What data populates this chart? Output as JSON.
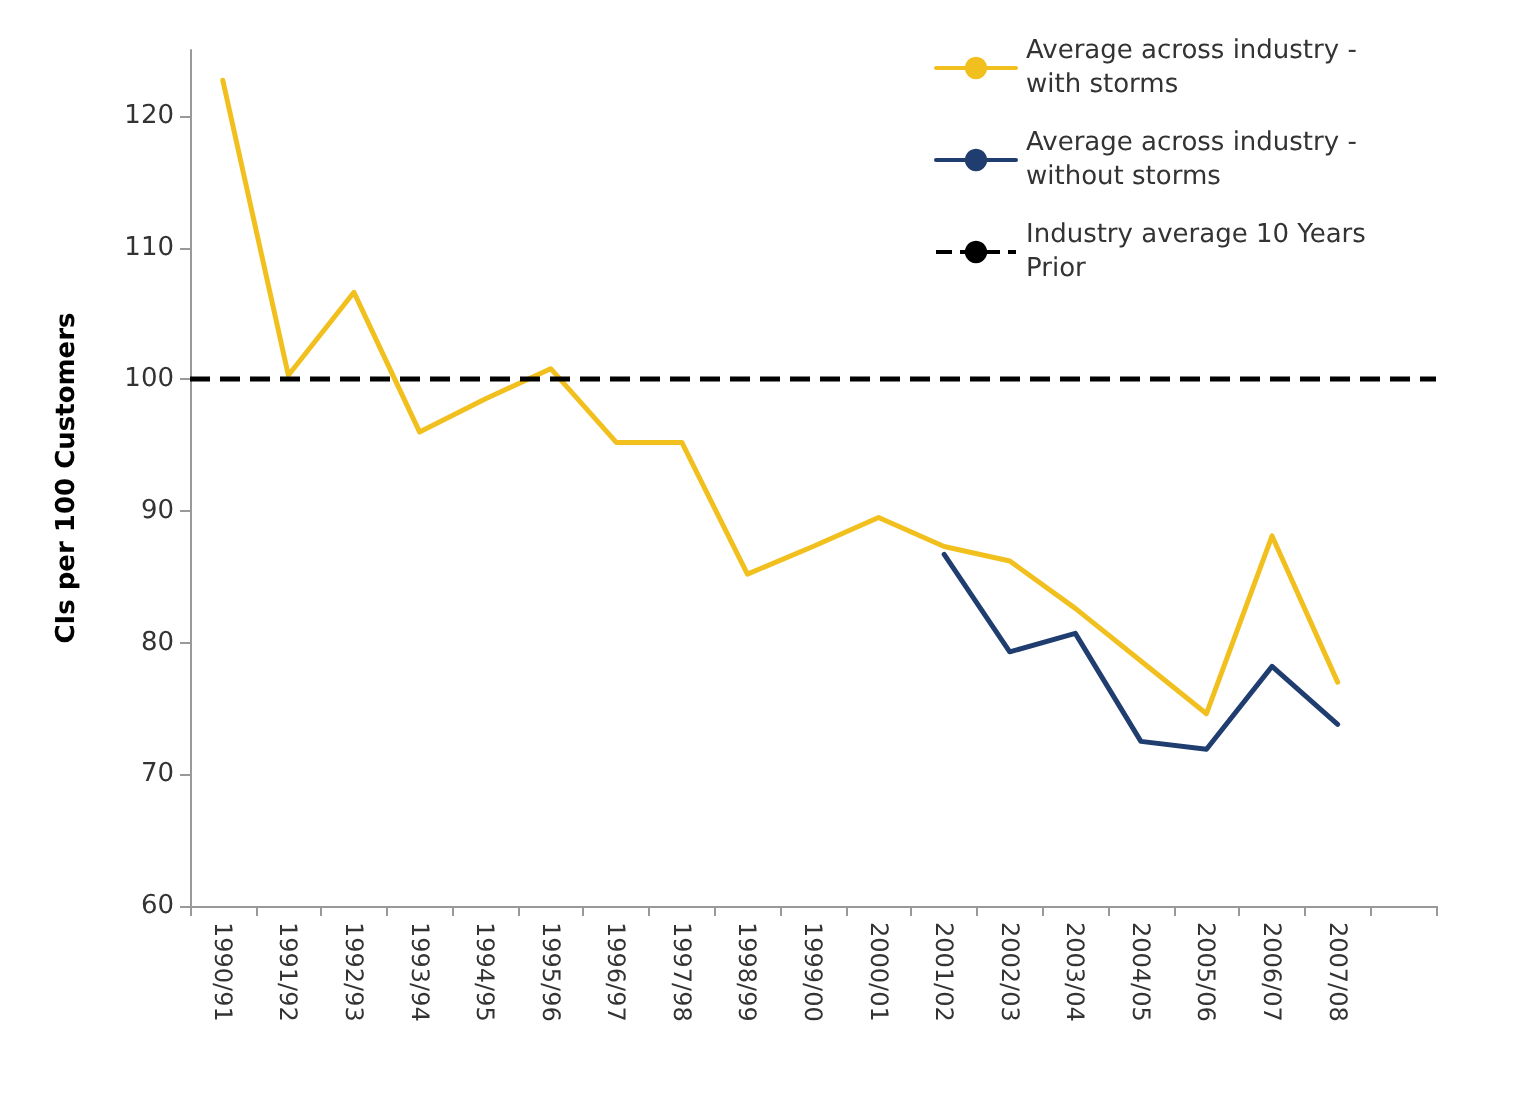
{
  "chart_data": {
    "type": "line",
    "ylabel": "CIs per 100 Customers",
    "categories": [
      "1990/91",
      "1991/92",
      "1992/93",
      "1993/94",
      "1994/95",
      "1995/96",
      "1996/97",
      "1997/98",
      "1998/99",
      "1999/00",
      "2000/01",
      "2001/02",
      "2002/03",
      "2003/04",
      "2004/05",
      "2005/06",
      "2006/07",
      "2007/08",
      null
    ],
    "series": [
      {
        "name": "Average across industry - with storms",
        "color": "#f2c01e",
        "values": [
          122.7,
          100.3,
          106.6,
          96,
          98.5,
          100.8,
          95.2,
          95.2,
          85.2,
          87.3,
          89.5,
          87.3,
          86.2,
          82.6,
          78.6,
          74.6,
          88.1,
          77,
          null
        ]
      },
      {
        "name": "Average across industry - without storms",
        "color": "#1f3d6e",
        "values": [
          null,
          null,
          null,
          null,
          null,
          null,
          null,
          null,
          null,
          null,
          null,
          86.7,
          79.3,
          80.7,
          72.5,
          71.9,
          78.2,
          73.8,
          null
        ]
      }
    ],
    "ref_lines": [
      {
        "axis": "y",
        "value": 100,
        "label": "Industry average 10 Years Prior",
        "color": "#000000",
        "line_style": "dashed"
      }
    ],
    "ylim": [
      60,
      125
    ],
    "yticks": [
      60,
      70,
      80,
      90,
      100,
      110,
      120
    ],
    "grid": false,
    "legend": "top right",
    "marker": "none",
    "line_style": "solid"
  }
}
